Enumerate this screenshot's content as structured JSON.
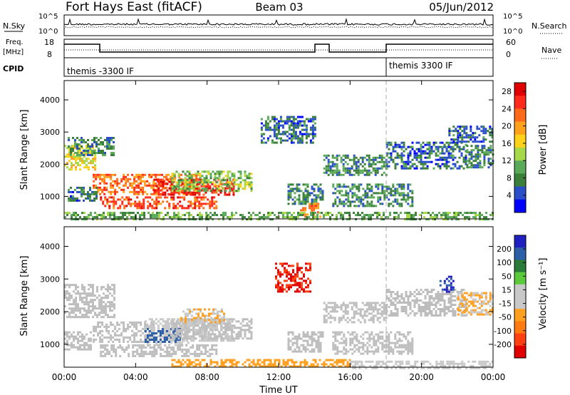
{
  "header": {
    "radar": "Fort Hays East (fitACF)",
    "beam": "Beam 03",
    "date": "05/Jun/2012"
  },
  "params": {
    "nsky_label": "N.Sky",
    "nsearch_label": "N.Search",
    "freq_label": "Freq.",
    "freq_unit": "[MHz]",
    "nave_label": "Nave",
    "cpid_label": "CPID",
    "noise_ticks": [
      "10^5",
      "10^0"
    ],
    "freq_ticks": [
      "18",
      "8"
    ],
    "nave_ticks": [
      "60",
      "0"
    ],
    "cpid_segments": [
      {
        "label": "themis -3300 IF",
        "start_h": 0
      },
      {
        "label": "themis 3300 IF",
        "start_h": 18
      }
    ]
  },
  "colors": {
    "power": [
      "#0000ff",
      "#2a4fc8",
      "#3a7f3a",
      "#5aaa5a",
      "#a6d84a",
      "#ffd21a",
      "#ffa21a",
      "#ff6a1a",
      "#ff2a1a",
      "#e00000"
    ],
    "velocity": [
      "#2020c0",
      "#2c5fa8",
      "#2a7a3a",
      "#5aca3a",
      "#c8c8c8",
      "#c8c8c8",
      "#ffa020",
      "#ff7a10",
      "#ff4010",
      "#e00000"
    ],
    "ground": "#bdbdbd"
  },
  "chart_data": [
    {
      "type": "heatmap",
      "title": "",
      "xlabel": "",
      "ylabel": "Slant Range [km]",
      "xlim": [
        0,
        24
      ],
      "ylim": [
        300,
        4600
      ],
      "x_ticks": [
        "00:00",
        "04:00",
        "08:00",
        "12:00",
        "16:00",
        "20:00",
        "00:00"
      ],
      "y_ticks": [
        1000,
        2000,
        3000,
        4000
      ],
      "colorbar": {
        "label": "Power [dB]",
        "ticks": [
          4,
          8,
          12,
          16,
          20,
          24,
          28
        ],
        "range": [
          0,
          30
        ]
      },
      "regions": [
        {
          "t0": 0.0,
          "t1": 1.7,
          "r0": 1850,
          "r1": 2600,
          "value": 16
        },
        {
          "t0": 0.2,
          "t1": 2.8,
          "r0": 2300,
          "r1": 2850,
          "value": 8
        },
        {
          "t0": 1.6,
          "t1": 7.5,
          "r0": 1100,
          "r1": 1700,
          "value": 22
        },
        {
          "t0": 5.0,
          "t1": 9.5,
          "r0": 1050,
          "r1": 1550,
          "value": 26
        },
        {
          "t0": 2.0,
          "t1": 8.5,
          "r0": 650,
          "r1": 1000,
          "value": 24
        },
        {
          "t0": 6.0,
          "t1": 10.5,
          "r0": 1200,
          "r1": 1800,
          "value": 12
        },
        {
          "t0": 0.2,
          "t1": 1.8,
          "r0": 900,
          "r1": 1300,
          "value": 6
        },
        {
          "t0": 12.5,
          "t1": 14.5,
          "r0": 800,
          "r1": 1400,
          "value": 8
        },
        {
          "t0": 13.2,
          "t1": 14.3,
          "r0": 400,
          "r1": 800,
          "value": 22
        },
        {
          "t0": 14.5,
          "t1": 18.0,
          "r0": 1700,
          "r1": 2300,
          "value": 8
        },
        {
          "t0": 15.0,
          "t1": 19.5,
          "r0": 700,
          "r1": 1400,
          "value": 8
        },
        {
          "t0": 11.0,
          "t1": 14.0,
          "r0": 2700,
          "r1": 3500,
          "value": 6
        },
        {
          "t0": 18.0,
          "t1": 22.5,
          "r0": 1900,
          "r1": 2700,
          "value": 6
        },
        {
          "t0": 22.5,
          "t1": 24.0,
          "r0": 1900,
          "r1": 2600,
          "value": 8
        },
        {
          "t0": 21.5,
          "t1": 24.0,
          "r0": 2700,
          "r1": 3200,
          "value": 6
        },
        {
          "t0": 0.0,
          "t1": 24.0,
          "r0": 300,
          "r1": 520,
          "value": 10
        }
      ]
    },
    {
      "type": "heatmap",
      "title": "",
      "xlabel": "Time UT",
      "ylabel": "Slant Range [km]",
      "xlim": [
        0,
        24
      ],
      "ylim": [
        300,
        4600
      ],
      "x_ticks": [
        "00:00",
        "04:00",
        "08:00",
        "12:00",
        "16:00",
        "20:00",
        "00:00"
      ],
      "y_ticks": [
        1000,
        2000,
        3000,
        4000
      ],
      "colorbar": {
        "label": "Velocity [m s⁻¹]",
        "ticks": [
          200,
          100,
          50,
          15,
          -15,
          -50,
          -100,
          -200
        ],
        "range": [
          -250,
          250
        ]
      },
      "regions": [
        {
          "t0": 0.0,
          "t1": 2.8,
          "r0": 1850,
          "r1": 2850,
          "value": 0
        },
        {
          "t0": 1.6,
          "t1": 5.0,
          "r0": 1100,
          "r1": 1700,
          "value": 0
        },
        {
          "t0": 4.5,
          "t1": 7.0,
          "r0": 1000,
          "r1": 1800,
          "value": 30
        },
        {
          "t0": 5.5,
          "t1": 9.5,
          "r0": 1100,
          "r1": 1800,
          "value": 30
        },
        {
          "t0": 4.5,
          "t1": 6.5,
          "r0": 1050,
          "r1": 1500,
          "value": 180
        },
        {
          "t0": 2.0,
          "t1": 8.5,
          "r0": 650,
          "r1": 1000,
          "value": 0
        },
        {
          "t0": 6.0,
          "t1": 10.5,
          "r0": 1200,
          "r1": 1800,
          "value": 0
        },
        {
          "t0": 6.5,
          "t1": 9.0,
          "r0": 1700,
          "r1": 2100,
          "value": -50
        },
        {
          "t0": 0.0,
          "t1": 1.5,
          "r0": 850,
          "r1": 1400,
          "value": 0
        },
        {
          "t0": 12.5,
          "t1": 14.5,
          "r0": 800,
          "r1": 1400,
          "value": 0
        },
        {
          "t0": 11.8,
          "t1": 13.8,
          "r0": 2600,
          "r1": 3500,
          "value": -200
        },
        {
          "t0": 15.0,
          "t1": 19.5,
          "r0": 700,
          "r1": 1400,
          "value": 0
        },
        {
          "t0": 14.5,
          "t1": 18.0,
          "r0": 1700,
          "r1": 2300,
          "value": 0
        },
        {
          "t0": 18.0,
          "t1": 22.5,
          "r0": 1900,
          "r1": 2700,
          "value": 0
        },
        {
          "t0": 22.0,
          "t1": 24.0,
          "r0": 1900,
          "r1": 2600,
          "value": -50
        },
        {
          "t0": 21.0,
          "t1": 21.8,
          "r0": 2600,
          "r1": 3100,
          "value": 200
        },
        {
          "t0": 6.0,
          "t1": 16.0,
          "r0": 300,
          "r1": 550,
          "value": -60
        },
        {
          "t0": 16.0,
          "t1": 24.0,
          "r0": 300,
          "r1": 500,
          "value": -30
        }
      ]
    }
  ]
}
